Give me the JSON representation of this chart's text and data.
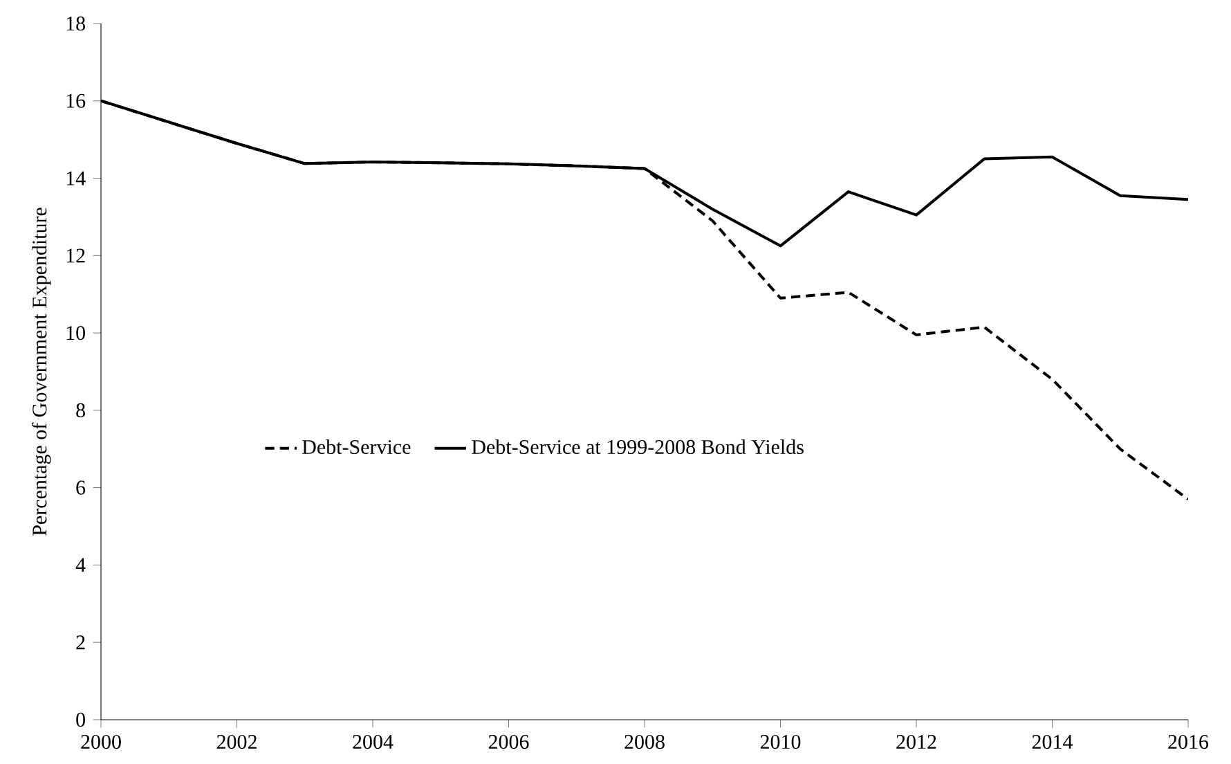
{
  "chart_data": {
    "type": "line",
    "ylabel": "Percentage of Government Expenditure",
    "x": [
      2000,
      2001,
      2002,
      2003,
      2004,
      2005,
      2006,
      2007,
      2008,
      2009,
      2010,
      2011,
      2012,
      2013,
      2014,
      2015,
      2016
    ],
    "series": [
      {
        "name": "Debt-Service",
        "color": "#000000",
        "line_style": "dashed",
        "values": [
          16.0,
          15.45,
          14.9,
          14.38,
          14.42,
          14.4,
          14.37,
          14.32,
          14.25,
          12.9,
          10.9,
          11.05,
          9.95,
          10.15,
          8.8,
          7.0,
          5.7
        ]
      },
      {
        "name": "Debt-Service at 1999-2008 Bond Yields",
        "color": "#000000",
        "line_style": "solid",
        "values": [
          16.0,
          15.45,
          14.9,
          14.38,
          14.42,
          14.4,
          14.37,
          14.32,
          14.25,
          13.2,
          12.25,
          13.65,
          13.05,
          14.5,
          14.55,
          13.55,
          13.45
        ]
      }
    ],
    "xlim": [
      2000,
      2016
    ],
    "xticks": [
      2000,
      2002,
      2004,
      2006,
      2008,
      2010,
      2012,
      2014,
      2016
    ],
    "ylim": [
      0,
      18
    ],
    "yticks": [
      0,
      2,
      4,
      6,
      8,
      10,
      12,
      14,
      16,
      18
    ],
    "grid": false,
    "legend": "left",
    "marker": "none"
  }
}
